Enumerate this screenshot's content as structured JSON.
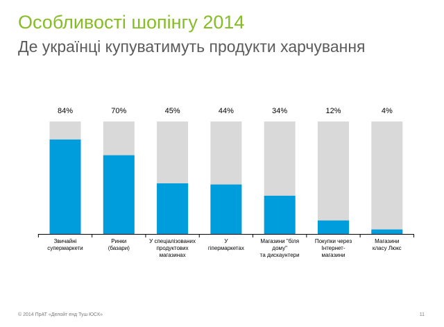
{
  "slide": {
    "title": "Особливості шопінгу 2014",
    "subtitle": "Де українці купуватимуть продукти харчування",
    "footer_left": "© 2014 ПрАТ «Делойт енд Туш ЮСК»",
    "footer_right": "11"
  },
  "colors": {
    "title": "#86bc25",
    "subtitle": "#5b5b5b",
    "bar": "#009ddc",
    "track": "#d9d9d9",
    "axis": "#000000",
    "text": "#000000"
  },
  "chart_data": {
    "type": "bar",
    "title": "",
    "xlabel": "",
    "ylabel": "",
    "ylim": [
      0,
      100
    ],
    "grid": false,
    "legend": "none",
    "categories": [
      [
        "Звичайні",
        "супермаркети"
      ],
      [
        "Ринки",
        "(базари)"
      ],
      [
        "У спеціалізованих",
        "продуктових",
        "магазинах"
      ],
      [
        "У",
        "гіпермаркетах"
      ],
      [
        "Магазини \"біля",
        "дому\"",
        "та дискаунтери"
      ],
      [
        "Покупки через",
        "Інтернет-",
        "магазини"
      ],
      [
        "Магазини",
        "класу Люкс"
      ]
    ],
    "values": [
      84,
      70,
      45,
      44,
      34,
      12,
      4
    ],
    "value_labels": [
      "84%",
      "70%",
      "45%",
      "44%",
      "34%",
      "12%",
      "4%"
    ]
  }
}
